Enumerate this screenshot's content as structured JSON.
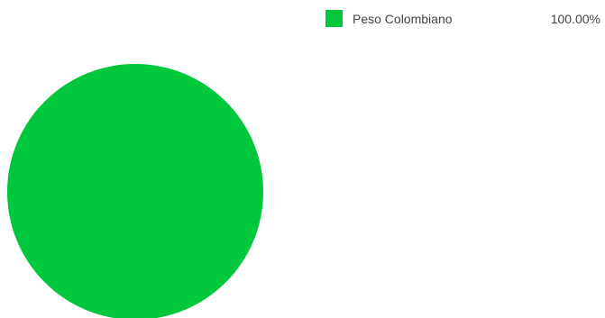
{
  "chart_data": {
    "type": "pie",
    "series": [
      {
        "name": "Peso Colombiano",
        "value": 100.0,
        "label": "100.00%",
        "color": "#00c73c"
      }
    ],
    "legend": {
      "position": "top-right"
    }
  }
}
